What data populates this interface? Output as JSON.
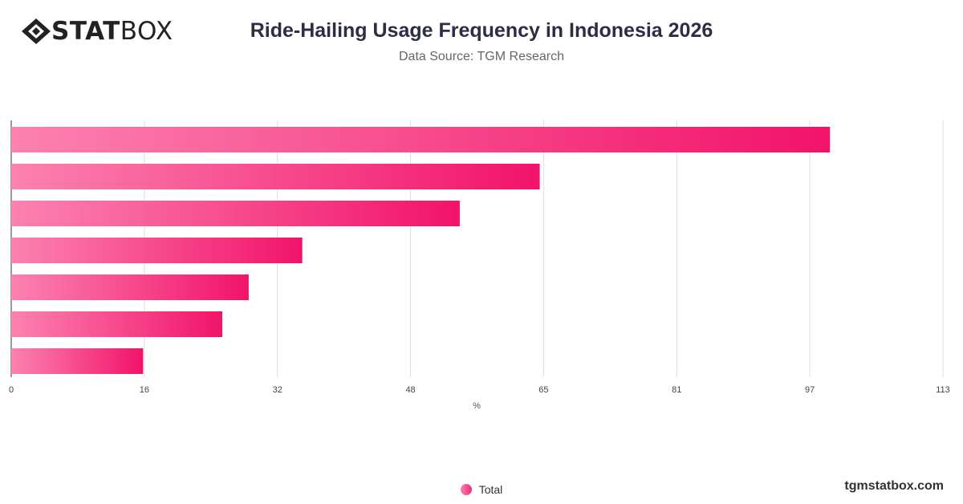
{
  "brand": {
    "logo_bold": "STAT",
    "logo_light": "BOX",
    "watermark": "tgmstatbox.com"
  },
  "chart_data": {
    "type": "bar",
    "orientation": "horizontal",
    "title": "Ride-Hailing Usage Frequency in Indonesia 2026",
    "subtitle": "Data Source: TGM Research",
    "xlabel": "%",
    "ylabel": "",
    "xlim": [
      0,
      113
    ],
    "x_ticks": [
      "0",
      "16",
      "32",
      "48",
      "65",
      "81",
      "97",
      "113"
    ],
    "categories": [
      "",
      "",
      "",
      "",
      "",
      "",
      ""
    ],
    "series": [
      {
        "name": "Total",
        "values": [
          99.3,
          64.1,
          54.4,
          35.3,
          28.8,
          25.6,
          16.0
        ]
      }
    ],
    "grid": true,
    "legend": "bottom-center",
    "colors": {
      "bar_start": "#fc82b0",
      "bar_end": "#f2136a",
      "grid": "#dddddd",
      "axis": "#333333"
    }
  }
}
